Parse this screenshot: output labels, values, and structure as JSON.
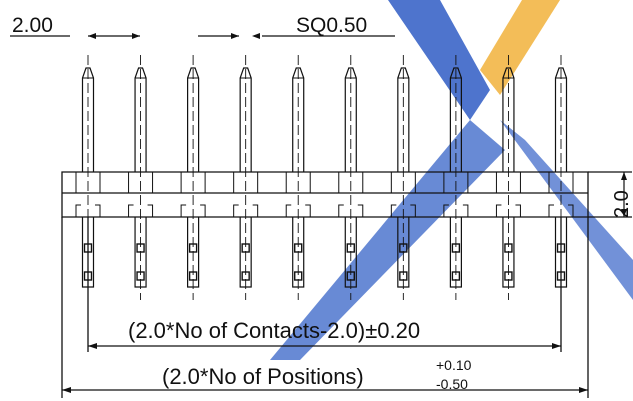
{
  "drawing": {
    "pitch_label": "2.00",
    "pin_size_label": "SQ0.50",
    "body_height_label": "2.0",
    "contacts_span_label": "(2.0*No of Contacts-2.0)±0.20",
    "overall_length_main": "(2.0*No of Positions)",
    "overall_tol_upper": "+0.10",
    "overall_tol_lower": "-0.50",
    "pin_count": 10
  },
  "colors": {
    "line": "#111111",
    "watermark_blue": "#3b66c8",
    "watermark_orange": "#f2b646"
  }
}
